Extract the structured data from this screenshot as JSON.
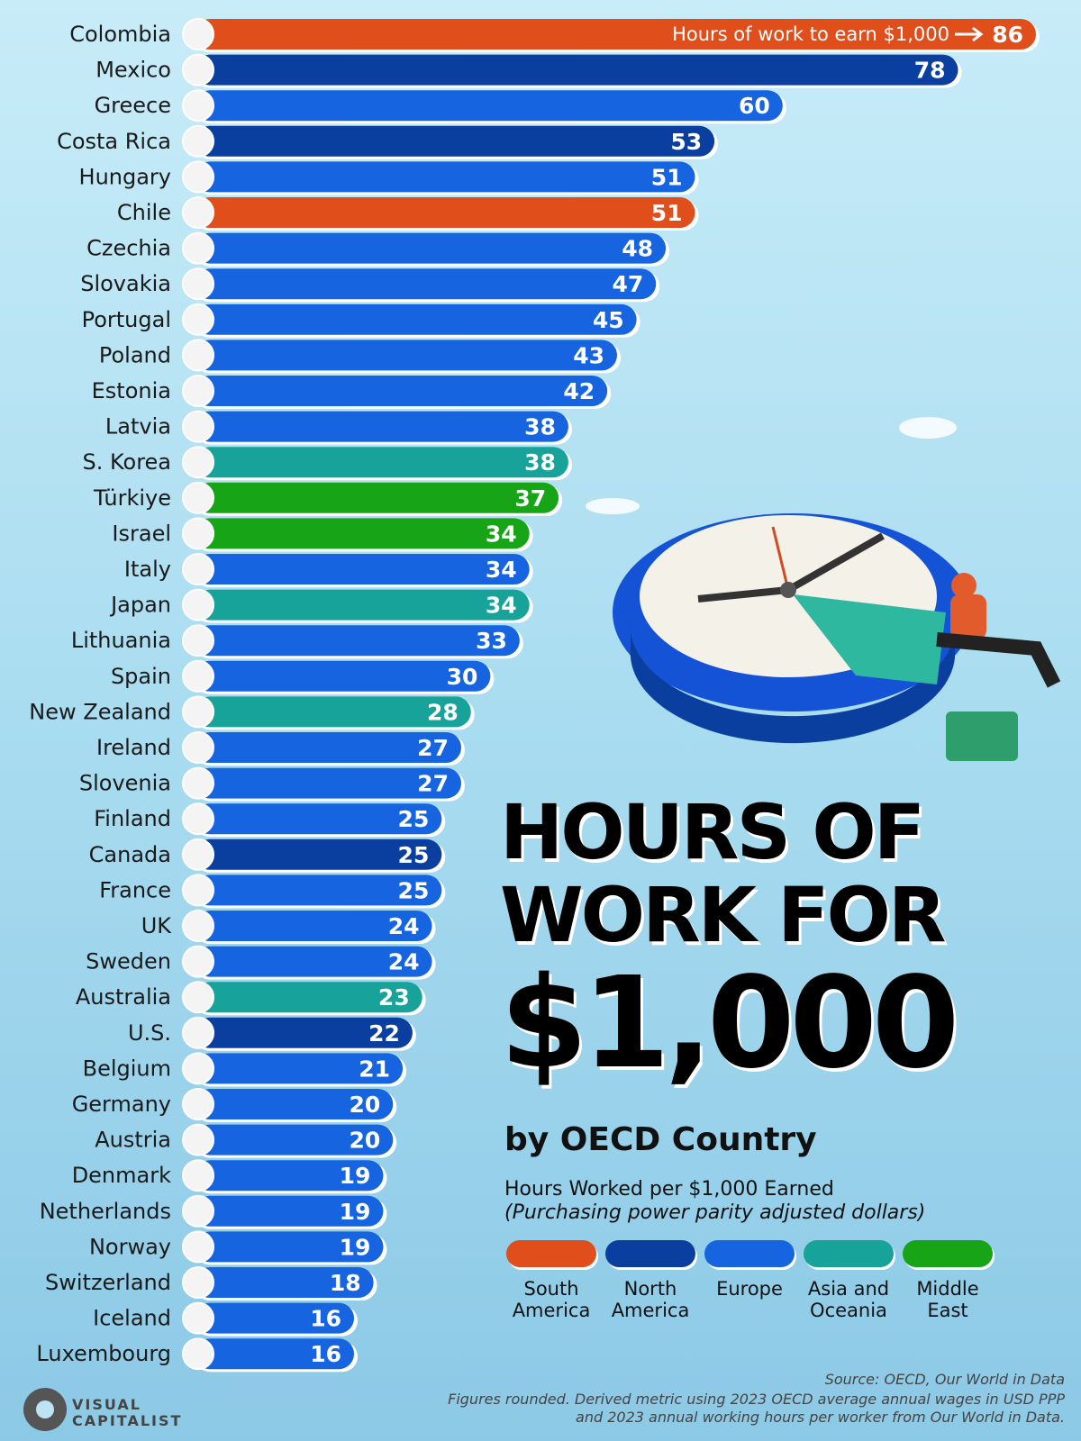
{
  "chart_data": {
    "type": "bar",
    "orientation": "horizontal",
    "title": [
      "HOURS OF WORK FOR",
      "$1,000"
    ],
    "subtitle": "by OECD Country",
    "axis_label": "Hours Worked per $1,000 Earned",
    "axis_note": "(Purchasing power parity adjusted dollars)",
    "annotation": "Hours of work to earn $1,000",
    "categories": [
      "Colombia",
      "Mexico",
      "Greece",
      "Costa Rica",
      "Hungary",
      "Chile",
      "Czechia",
      "Slovakia",
      "Portugal",
      "Poland",
      "Estonia",
      "Latvia",
      "S. Korea",
      "Türkiye",
      "Israel",
      "Italy",
      "Japan",
      "Lithuania",
      "Spain",
      "New Zealand",
      "Ireland",
      "Slovenia",
      "Finland",
      "Canada",
      "France",
      "UK",
      "Sweden",
      "Australia",
      "U.S.",
      "Belgium",
      "Germany",
      "Austria",
      "Denmark",
      "Netherlands",
      "Norway",
      "Switzerland",
      "Iceland",
      "Luxembourg"
    ],
    "values": [
      86,
      78,
      60,
      53,
      51,
      51,
      48,
      47,
      45,
      43,
      42,
      38,
      38,
      37,
      34,
      34,
      34,
      33,
      30,
      28,
      27,
      27,
      25,
      25,
      25,
      24,
      24,
      23,
      22,
      21,
      20,
      20,
      19,
      19,
      19,
      18,
      16,
      16
    ],
    "colors": [
      "#e04e1b",
      "#0b3f9f",
      "#1664e0",
      "#0b3f9f",
      "#1664e0",
      "#e04e1b",
      "#1664e0",
      "#1664e0",
      "#1664e0",
      "#1664e0",
      "#1664e0",
      "#1664e0",
      "#17a39a",
      "#17a517",
      "#17a517",
      "#1664e0",
      "#17a39a",
      "#1664e0",
      "#1664e0",
      "#17a39a",
      "#1664e0",
      "#1664e0",
      "#1664e0",
      "#0b3f9f",
      "#1664e0",
      "#1664e0",
      "#1664e0",
      "#17a39a",
      "#0b3f9f",
      "#1664e0",
      "#1664e0",
      "#1664e0",
      "#1664e0",
      "#1664e0",
      "#1664e0",
      "#1664e0",
      "#1664e0",
      "#1664e0"
    ],
    "xlim": [
      0,
      86
    ],
    "legend": [
      {
        "name": "South America",
        "color": "#e04e1b"
      },
      {
        "name": "North America",
        "color": "#0b3f9f"
      },
      {
        "name": "Europe",
        "color": "#1664e0"
      },
      {
        "name": "Asia and Oceania",
        "color": "#17a39a"
      },
      {
        "name": "Middle East",
        "color": "#17a517"
      }
    ],
    "source": "Source: OECD, Our World in Data",
    "footnote": "Figures rounded. Derived metric using 2023 OECD average annual wages in USD PPP and 2023 annual working hours per worker from Our World in Data.",
    "brand": "VISUAL CAPITALIST"
  }
}
